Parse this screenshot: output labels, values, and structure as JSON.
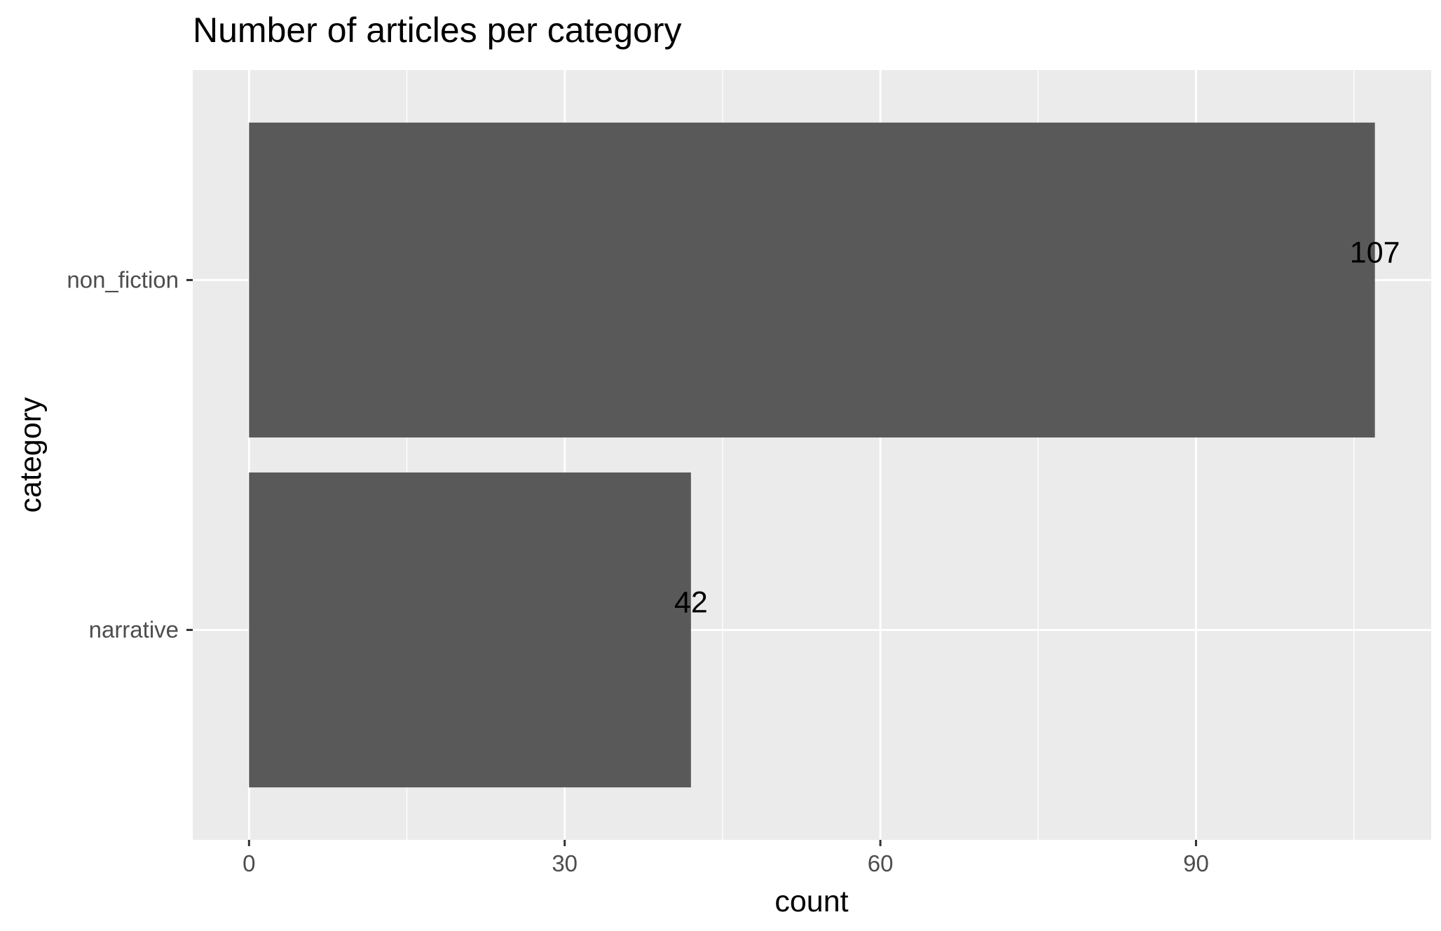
{
  "chart_data": {
    "type": "bar",
    "orientation": "horizontal",
    "title": "Number of articles per category",
    "xlabel": "count",
    "ylabel": "category",
    "categories": [
      "non_fiction",
      "narrative"
    ],
    "values": [
      107,
      42
    ],
    "data_labels": [
      "107",
      "42"
    ],
    "x_ticks": [
      0,
      30,
      60,
      90
    ],
    "x_tick_labels": [
      "0",
      "30",
      "60",
      "90"
    ],
    "xlim": [
      -5.35,
      112.35
    ],
    "grid": true,
    "legend": "none",
    "colors": {
      "panel_background": "#ebebeb",
      "grid_line": "#ffffff",
      "bar_fill": "#595959",
      "text": "#000000",
      "tick_text": "#4d4d4d",
      "tick_mark": "#333333"
    }
  }
}
